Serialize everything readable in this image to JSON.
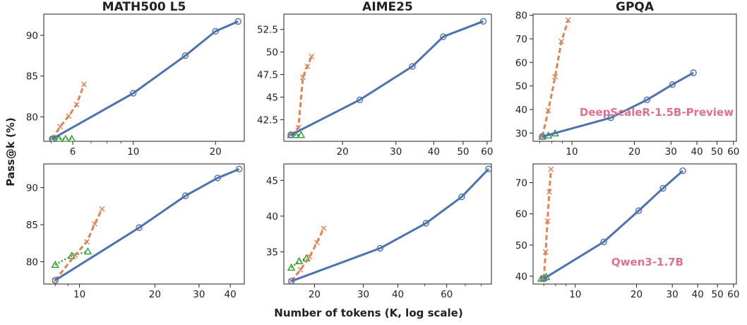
{
  "figure": {
    "ylabel": "Pass@k (%)",
    "xlabel": "Number of tokens (K, log scale)"
  },
  "colors": {
    "blue": "#4c72b0",
    "orange": "#dd8452",
    "green": "#2ca02c",
    "annotation": "#e07090"
  },
  "chart_data": [
    {
      "type": "line",
      "title": "MATH500 L5",
      "xscale": "log",
      "xlim": [
        4.7,
        25.5
      ],
      "ylim": [
        77,
        92.6
      ],
      "xticks": [
        6,
        10,
        20
      ],
      "yticks": [
        80,
        85,
        90
      ],
      "series": [
        {
          "color": "blue",
          "marker": "o",
          "style": "solid",
          "x": [
            5.05,
            10,
            15.5,
            20,
            24.2
          ],
          "y": [
            77.3,
            82.9,
            87.5,
            90.5,
            91.7
          ]
        },
        {
          "color": "orange",
          "marker": "x",
          "style": "dashed",
          "x": [
            5.05,
            5.4,
            5.8,
            6.2,
            6.6
          ],
          "y": [
            77.3,
            78.8,
            80.1,
            81.5,
            84.0
          ]
        },
        {
          "color": "green",
          "marker": "^",
          "style": "dotted",
          "x": [
            5.05,
            5.35,
            5.65,
            5.95
          ],
          "y": [
            77.3,
            77.3,
            77.3,
            77.3
          ]
        }
      ]
    },
    {
      "type": "line",
      "title": "AIME25",
      "xscale": "log",
      "xlim": [
        12.8,
        62
      ],
      "ylim": [
        40.1,
        54.2
      ],
      "xticks": [
        20,
        30,
        40,
        50,
        60
      ],
      "yticks": [
        42.5,
        45.0,
        47.5,
        50.0,
        52.5
      ],
      "series": [
        {
          "color": "blue",
          "marker": "o",
          "style": "solid",
          "x": [
            13.5,
            22.8,
            34,
            43,
            58.3
          ],
          "y": [
            40.8,
            44.7,
            48.4,
            51.7,
            53.4
          ]
        },
        {
          "color": "orange",
          "marker": "x",
          "style": "dashed",
          "x": [
            13.5,
            14.3,
            14.8,
            15.3,
            15.8
          ],
          "y": [
            40.8,
            41.6,
            47.2,
            48.4,
            49.5
          ]
        },
        {
          "color": "green",
          "marker": "^",
          "style": "dotted",
          "x": [
            13.5,
            14.0,
            14.6
          ],
          "y": [
            40.8,
            40.8,
            40.8
          ]
        }
      ]
    },
    {
      "type": "line",
      "title": "GPQA",
      "xscale": "log",
      "xlim": [
        6.5,
        62
      ],
      "ylim": [
        26.5,
        80.5
      ],
      "xticks": [
        10,
        20,
        30,
        40,
        50,
        60
      ],
      "yticks": [
        30,
        40,
        50,
        60,
        70,
        80
      ],
      "series": [
        {
          "color": "blue",
          "marker": "o",
          "style": "solid",
          "x": [
            7.2,
            15.4,
            23,
            30.5,
            38.5
          ],
          "y": [
            28.5,
            36.5,
            44.1,
            50.6,
            55.6
          ]
        },
        {
          "color": "orange",
          "marker": "x",
          "style": "dashed",
          "x": [
            7.2,
            7.7,
            8.3,
            8.9,
            9.6
          ],
          "y": [
            28.5,
            39.6,
            53.9,
            68.9,
            78.0
          ]
        },
        {
          "color": "green",
          "marker": "^",
          "style": "dotted",
          "x": [
            7.2,
            7.7,
            8.3
          ],
          "y": [
            28.5,
            29.0,
            29.9
          ]
        }
      ],
      "annotation": "DeepScaleR-1.5B-Preview"
    },
    {
      "type": "line",
      "title": "",
      "xscale": "log",
      "xlim": [
        7.2,
        45.5
      ],
      "ylim": [
        77,
        93.2
      ],
      "xticks": [
        10,
        20,
        30,
        40
      ],
      "yticks": [
        80,
        85,
        90
      ],
      "series": [
        {
          "color": "blue",
          "marker": "o",
          "style": "solid",
          "x": [
            8.0,
            17.3,
            26.5,
            35.6,
            43.4
          ],
          "y": [
            77.5,
            84.6,
            88.9,
            91.3,
            92.5
          ]
        },
        {
          "color": "orange",
          "marker": "x",
          "style": "dashed",
          "x": [
            8.0,
            9.6,
            10.7,
            11.5,
            12.3
          ],
          "y": [
            77.5,
            80.9,
            82.7,
            85.1,
            87.1
          ]
        },
        {
          "color": "green",
          "marker": "^",
          "style": "dotted",
          "x": [
            8.0,
            9.3,
            10.8
          ],
          "y": [
            79.6,
            80.8,
            81.4
          ]
        }
      ]
    },
    {
      "type": "line",
      "title": "",
      "xscale": "log",
      "xlim": [
        15.5,
        87
      ],
      "ylim": [
        30.5,
        47.3
      ],
      "xticks": [
        20,
        30,
        40,
        60
      ],
      "yticks": [
        35,
        40,
        45
      ],
      "series": [
        {
          "color": "blue",
          "marker": "o",
          "style": "solid",
          "x": [
            16.5,
            34.5,
            50.5,
            68,
            85
          ],
          "y": [
            30.9,
            35.5,
            39.0,
            42.7,
            46.6
          ]
        },
        {
          "color": "orange",
          "marker": "x",
          "style": "dashed",
          "x": [
            16.5,
            17.8,
            19.2,
            20.4,
            21.6
          ],
          "y": [
            30.9,
            32.5,
            34.3,
            36.3,
            38.3
          ]
        },
        {
          "color": "green",
          "marker": "^",
          "style": "dotted",
          "x": [
            16.5,
            17.6,
            18.7
          ],
          "y": [
            32.8,
            33.7,
            34.1
          ]
        }
      ]
    },
    {
      "type": "line",
      "title": "",
      "xscale": "log",
      "xlim": [
        6.2,
        62
      ],
      "ylim": [
        37.5,
        76
      ],
      "xticks": [
        10,
        20,
        30,
        40,
        50,
        60
      ],
      "yticks": [
        40,
        50,
        60,
        70
      ],
      "series": [
        {
          "color": "blue",
          "marker": "o",
          "style": "solid",
          "x": [
            7.0,
            13.8,
            20.5,
            27.0,
            33.8
          ],
          "y": [
            39.2,
            51.0,
            61.0,
            68.2,
            73.8
          ]
        },
        {
          "color": "orange",
          "marker": "x",
          "style": "dashed",
          "x": [
            7.0,
            7.15,
            7.3,
            7.45,
            7.6
          ],
          "y": [
            39.2,
            47.8,
            57.7,
            67.0,
            74.3
          ]
        },
        {
          "color": "green",
          "marker": "^",
          "style": "dotted",
          "x": [
            6.8,
            7.0,
            7.2
          ],
          "y": [
            39.2,
            39.5,
            39.8
          ]
        }
      ],
      "annotation": "Qwen3-1.7B"
    }
  ]
}
